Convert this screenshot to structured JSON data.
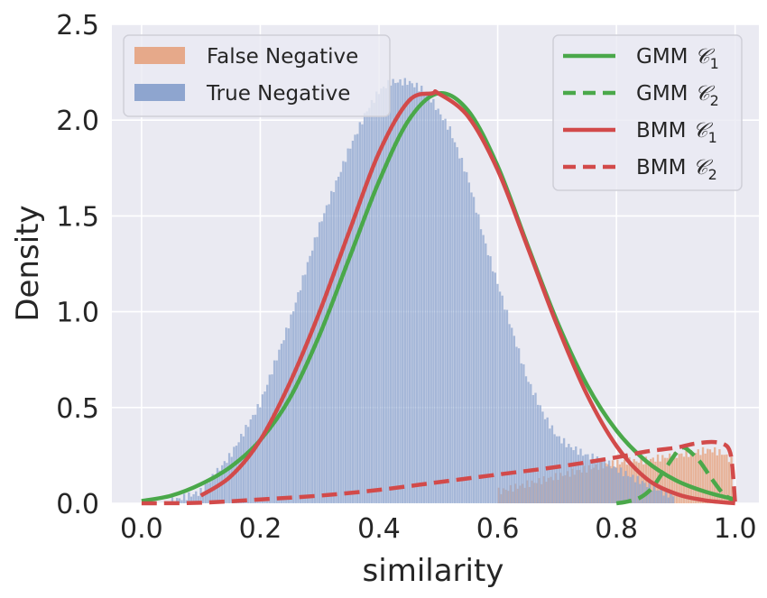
{
  "chart_data": {
    "type": "histogram",
    "xlabel": "similarity",
    "ylabel": "Density",
    "xlim": [
      -0.05,
      1.04
    ],
    "ylim": [
      0,
      2.5
    ],
    "xticks": [
      "0.0",
      "0.2",
      "0.4",
      "0.6",
      "0.8",
      "1.0"
    ],
    "xtick_values": [
      0.0,
      0.2,
      0.4,
      0.6,
      0.8,
      1.0
    ],
    "yticks": [
      "0.0",
      "0.5",
      "1.0",
      "1.5",
      "2.0",
      "2.5"
    ],
    "ytick_values": [
      0.0,
      0.5,
      1.0,
      1.5,
      2.0,
      2.5
    ],
    "grid": true,
    "background": "#eaeaf2",
    "histograms": [
      {
        "name": "False Negative",
        "color": "#e6a98a",
        "x": [
          0.6,
          0.65,
          0.7,
          0.75,
          0.78,
          0.8,
          0.82,
          0.84,
          0.86,
          0.88,
          0.9,
          0.92,
          0.94,
          0.96,
          0.98,
          0.995
        ],
        "density": [
          0.06,
          0.1,
          0.14,
          0.18,
          0.2,
          0.21,
          0.22,
          0.22,
          0.23,
          0.24,
          0.25,
          0.26,
          0.27,
          0.28,
          0.26,
          0.22
        ]
      },
      {
        "name": "True Negative",
        "color": "#8ea5cf",
        "x": [
          0.05,
          0.1,
          0.15,
          0.2,
          0.25,
          0.3,
          0.35,
          0.38,
          0.4,
          0.42,
          0.45,
          0.48,
          0.5,
          0.52,
          0.55,
          0.58,
          0.6,
          0.62,
          0.65,
          0.68,
          0.7,
          0.72,
          0.75,
          0.78,
          0.8,
          0.85,
          0.9
        ],
        "density": [
          0.01,
          0.06,
          0.25,
          0.52,
          0.95,
          1.45,
          1.85,
          2.05,
          2.15,
          2.2,
          2.2,
          2.15,
          2.05,
          1.95,
          1.7,
          1.35,
          1.15,
          0.95,
          0.65,
          0.45,
          0.35,
          0.3,
          0.25,
          0.22,
          0.18,
          0.1,
          0.03
        ]
      }
    ],
    "series": [
      {
        "name": "GMM 𝒞₁",
        "label_main": "GMM",
        "label_math": "𝒞",
        "label_sub": "1",
        "color": "#4aa84a",
        "style": "solid",
        "x": [
          0.0,
          0.05,
          0.1,
          0.15,
          0.2,
          0.25,
          0.3,
          0.35,
          0.4,
          0.45,
          0.5,
          0.55,
          0.6,
          0.65,
          0.7,
          0.75,
          0.8,
          0.85,
          0.9,
          0.95,
          1.0
        ],
        "y": [
          0.012,
          0.04,
          0.1,
          0.19,
          0.33,
          0.55,
          0.88,
          1.28,
          1.68,
          2.0,
          2.14,
          2.05,
          1.76,
          1.35,
          0.95,
          0.62,
          0.38,
          0.22,
          0.12,
          0.06,
          0.02
        ]
      },
      {
        "name": "GMM 𝒞₂",
        "label_main": "GMM",
        "label_math": "𝒞",
        "label_sub": "2",
        "color": "#4aa84a",
        "style": "dashed",
        "x": [
          0.8,
          0.82,
          0.84,
          0.86,
          0.88,
          0.9,
          0.91,
          0.92,
          0.94,
          0.96,
          0.98,
          1.0
        ],
        "y": [
          0.0,
          0.01,
          0.03,
          0.08,
          0.17,
          0.26,
          0.29,
          0.28,
          0.22,
          0.13,
          0.05,
          0.01
        ]
      },
      {
        "name": "BMM 𝒞₁",
        "label_main": "BMM",
        "label_math": "𝒞",
        "label_sub": "1",
        "color": "#d24a4a",
        "style": "solid",
        "x": [
          0.1,
          0.15,
          0.2,
          0.25,
          0.3,
          0.35,
          0.4,
          0.45,
          0.49,
          0.5,
          0.55,
          0.6,
          0.65,
          0.7,
          0.75,
          0.8,
          0.85,
          0.9,
          0.95,
          1.0
        ],
        "y": [
          0.04,
          0.14,
          0.33,
          0.63,
          1.0,
          1.42,
          1.83,
          2.1,
          2.14,
          2.14,
          2.02,
          1.74,
          1.34,
          0.93,
          0.57,
          0.3,
          0.13,
          0.05,
          0.015,
          0.0
        ]
      },
      {
        "name": "BMM 𝒞₂",
        "label_main": "BMM",
        "label_math": "𝒞",
        "label_sub": "2",
        "color": "#d24a4a",
        "style": "dashed",
        "x": [
          0.0,
          0.1,
          0.2,
          0.3,
          0.4,
          0.5,
          0.6,
          0.7,
          0.8,
          0.85,
          0.9,
          0.93,
          0.96,
          0.98,
          0.99,
          0.995,
          1.0
        ],
        "y": [
          0.0,
          0.003,
          0.02,
          0.04,
          0.07,
          0.11,
          0.15,
          0.19,
          0.24,
          0.27,
          0.29,
          0.31,
          0.32,
          0.31,
          0.28,
          0.2,
          0.0
        ]
      }
    ],
    "legend_left": {
      "placement": "top-left",
      "entries": [
        "False Negative",
        "True Negative"
      ]
    },
    "legend_right": {
      "placement": "top-right"
    }
  }
}
